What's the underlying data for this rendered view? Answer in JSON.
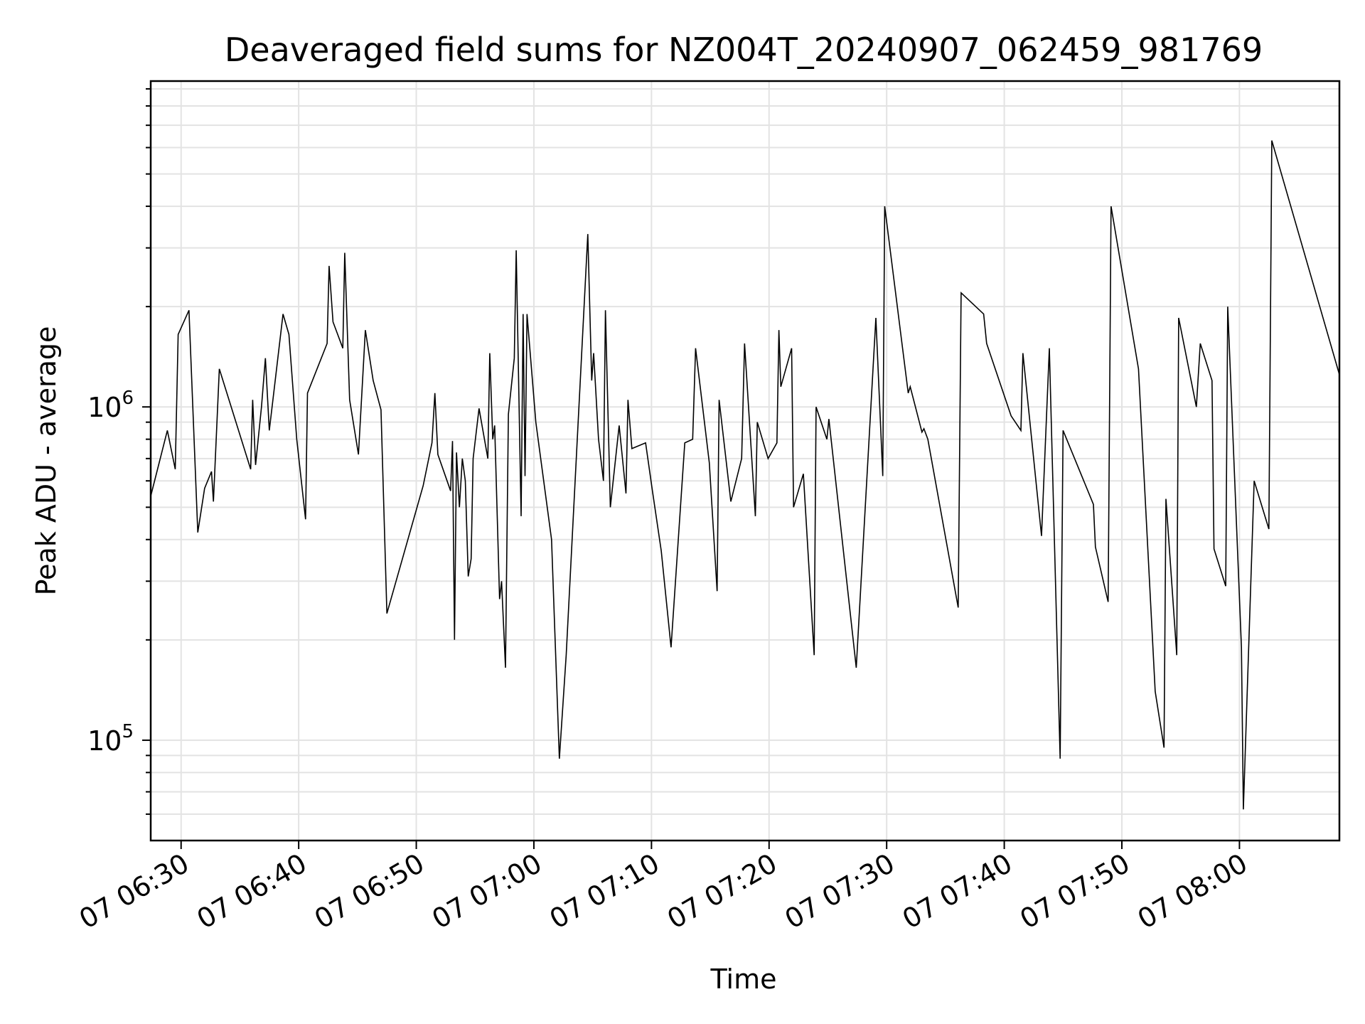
{
  "chart_data": {
    "type": "line",
    "title": "Deaveraged field sums for NZ004T_20240907_062459_981769",
    "xlabel": "Time",
    "ylabel": "Peak ADU - average",
    "yscale": "log",
    "grid": true,
    "xlim": [
      "2024-09-07T06:27:25",
      "2024-09-07T08:08:30"
    ],
    "ylim": [
      50000,
      9500000
    ],
    "x_ticks": [
      {
        "value": "2024-09-07T06:30:00",
        "label": "07 06:30"
      },
      {
        "value": "2024-09-07T06:40:00",
        "label": "07 06:40"
      },
      {
        "value": "2024-09-07T06:50:00",
        "label": "07 06:50"
      },
      {
        "value": "2024-09-07T07:00:00",
        "label": "07 07:00"
      },
      {
        "value": "2024-09-07T07:10:00",
        "label": "07 07:10"
      },
      {
        "value": "2024-09-07T07:20:00",
        "label": "07 07:20"
      },
      {
        "value": "2024-09-07T07:30:00",
        "label": "07 07:30"
      },
      {
        "value": "2024-09-07T07:40:00",
        "label": "07 07:40"
      },
      {
        "value": "2024-09-07T07:50:00",
        "label": "07 07:50"
      },
      {
        "value": "2024-09-07T08:00:00",
        "label": "07 08:00"
      }
    ],
    "y_ticks": [
      {
        "value": 100000,
        "base": "10",
        "exp": "5"
      },
      {
        "value": 1000000,
        "base": "10",
        "exp": "6"
      }
    ],
    "series": [
      {
        "x": [
          "2024-09-07T06:27:25",
          "2024-09-07T06:28:50",
          "2024-09-07T06:29:30",
          "2024-09-07T06:29:45",
          "2024-09-07T06:30:40",
          "2024-09-07T06:31:25",
          "2024-09-07T06:32:00",
          "2024-09-07T06:32:35",
          "2024-09-07T06:32:45",
          "2024-09-07T06:33:15",
          "2024-09-07T06:35:55",
          "2024-09-07T06:36:05",
          "2024-09-07T06:36:20",
          "2024-09-07T06:36:50",
          "2024-09-07T06:37:10",
          "2024-09-07T06:37:30",
          "2024-09-07T06:38:00",
          "2024-09-07T06:38:40",
          "2024-09-07T06:39:10",
          "2024-09-07T06:39:50",
          "2024-09-07T06:40:35",
          "2024-09-07T06:40:45",
          "2024-09-07T06:42:25",
          "2024-09-07T06:42:35",
          "2024-09-07T06:42:55",
          "2024-09-07T06:43:45",
          "2024-09-07T06:43:55",
          "2024-09-07T06:44:20",
          "2024-09-07T06:45:05",
          "2024-09-07T06:45:40",
          "2024-09-07T06:46:20",
          "2024-09-07T06:47:00",
          "2024-09-07T06:47:30",
          "2024-09-07T06:50:35",
          "2024-09-07T06:51:20",
          "2024-09-07T06:51:35",
          "2024-09-07T06:51:50",
          "2024-09-07T06:52:55",
          "2024-09-07T06:53:05",
          "2024-09-07T06:53:15",
          "2024-09-07T06:53:25",
          "2024-09-07T06:53:40",
          "2024-09-07T06:53:55",
          "2024-09-07T06:54:10",
          "2024-09-07T06:54:25",
          "2024-09-07T06:54:40",
          "2024-09-07T06:54:50",
          "2024-09-07T06:55:20",
          "2024-09-07T06:56:05",
          "2024-09-07T06:56:15",
          "2024-09-07T06:56:30",
          "2024-09-07T06:56:40",
          "2024-09-07T06:57:05",
          "2024-09-07T06:57:15",
          "2024-09-07T06:57:35",
          "2024-09-07T06:57:50",
          "2024-09-07T06:58:20",
          "2024-09-07T06:58:30",
          "2024-09-07T06:58:55",
          "2024-09-07T06:59:05",
          "2024-09-07T06:59:15",
          "2024-09-07T06:59:25",
          "2024-09-07T07:00:10",
          "2024-09-07T07:01:30",
          "2024-09-07T07:02:10",
          "2024-09-07T07:02:45",
          "2024-09-07T07:04:35",
          "2024-09-07T07:04:55",
          "2024-09-07T07:05:05",
          "2024-09-07T07:05:30",
          "2024-09-07T07:05:55",
          "2024-09-07T07:06:05",
          "2024-09-07T07:06:30",
          "2024-09-07T07:07:15",
          "2024-09-07T07:07:50",
          "2024-09-07T07:08:00",
          "2024-09-07T07:08:20",
          "2024-09-07T07:09:30",
          "2024-09-07T07:10:05",
          "2024-09-07T07:10:50",
          "2024-09-07T07:11:40",
          "2024-09-07T07:12:50",
          "2024-09-07T07:13:30",
          "2024-09-07T07:13:45",
          "2024-09-07T07:14:55",
          "2024-09-07T07:15:35",
          "2024-09-07T07:15:45",
          "2024-09-07T07:16:45",
          "2024-09-07T07:17:40",
          "2024-09-07T07:17:55",
          "2024-09-07T07:18:50",
          "2024-09-07T07:19:00",
          "2024-09-07T07:19:55",
          "2024-09-07T07:20:40",
          "2024-09-07T07:20:50",
          "2024-09-07T07:21:00",
          "2024-09-07T07:21:55",
          "2024-09-07T07:22:05",
          "2024-09-07T07:22:55",
          "2024-09-07T07:23:50",
          "2024-09-07T07:24:00",
          "2024-09-07T07:24:55",
          "2024-09-07T07:25:05",
          "2024-09-07T07:27:25",
          "2024-09-07T07:29:05",
          "2024-09-07T07:29:40",
          "2024-09-07T07:29:50",
          "2024-09-07T07:31:50",
          "2024-09-07T07:32:00",
          "2024-09-07T07:33:00",
          "2024-09-07T07:33:10",
          "2024-09-07T07:33:30",
          "2024-09-07T07:36:05",
          "2024-09-07T07:36:20",
          "2024-09-07T07:38:15",
          "2024-09-07T07:38:30",
          "2024-09-07T07:40:35",
          "2024-09-07T07:41:25",
          "2024-09-07T07:41:35",
          "2024-09-07T07:43:10",
          "2024-09-07T07:43:50",
          "2024-09-07T07:44:45",
          "2024-09-07T07:45:00",
          "2024-09-07T07:47:35",
          "2024-09-07T07:47:45",
          "2024-09-07T07:48:50",
          "2024-09-07T07:49:05",
          "2024-09-07T07:51:25",
          "2024-09-07T07:52:50",
          "2024-09-07T07:53:35",
          "2024-09-07T07:53:45",
          "2024-09-07T07:54:40",
          "2024-09-07T07:54:50",
          "2024-09-07T07:56:20",
          "2024-09-07T07:56:40",
          "2024-09-07T07:57:40",
          "2024-09-07T07:57:50",
          "2024-09-07T07:58:50",
          "2024-09-07T07:59:00",
          "2024-09-07T08:00:10",
          "2024-09-07T08:00:20",
          "2024-09-07T08:01:15",
          "2024-09-07T08:02:30",
          "2024-09-07T08:02:45",
          "2024-09-07T08:08:30"
        ],
        "values": [
          540000,
          850000,
          650000,
          1650000,
          1950000,
          420000,
          570000,
          640000,
          520000,
          1300000,
          650000,
          1050000,
          670000,
          1000000,
          1400000,
          850000,
          1200000,
          1900000,
          1650000,
          800000,
          460000,
          1100000,
          1550000,
          2650000,
          1800000,
          1500000,
          2900000,
          1050000,
          720000,
          1700000,
          1200000,
          980000,
          240000,
          580000,
          780000,
          1100000,
          720000,
          560000,
          790000,
          200000,
          730000,
          500000,
          700000,
          600000,
          310000,
          350000,
          700000,
          990000,
          700000,
          1450000,
          800000,
          880000,
          265000,
          300000,
          165000,
          950000,
          1400000,
          2950000,
          470000,
          1900000,
          620000,
          1900000,
          900000,
          400000,
          88000,
          180000,
          3300000,
          1200000,
          1450000,
          800000,
          600000,
          1950000,
          500000,
          880000,
          550000,
          1050000,
          750000,
          780000,
          560000,
          370000,
          190000,
          780000,
          800000,
          1500000,
          680000,
          280000,
          1050000,
          520000,
          700000,
          1550000,
          470000,
          900000,
          700000,
          780000,
          1700000,
          1150000,
          1500000,
          500000,
          630000,
          180000,
          1000000,
          800000,
          920000,
          165000,
          1850000,
          620000,
          4000000,
          1100000,
          1150000,
          840000,
          860000,
          800000,
          250000,
          2200000,
          1900000,
          1550000,
          940000,
          850000,
          1450000,
          410000,
          1500000,
          88000,
          850000,
          510000,
          380000,
          260000,
          4000000,
          1300000,
          140000,
          95000,
          530000,
          180000,
          1850000,
          1000000,
          1550000,
          1200000,
          375000,
          290000,
          2000000,
          190000,
          62000,
          600000,
          430000,
          6300000,
          1250000
        ]
      }
    ]
  }
}
